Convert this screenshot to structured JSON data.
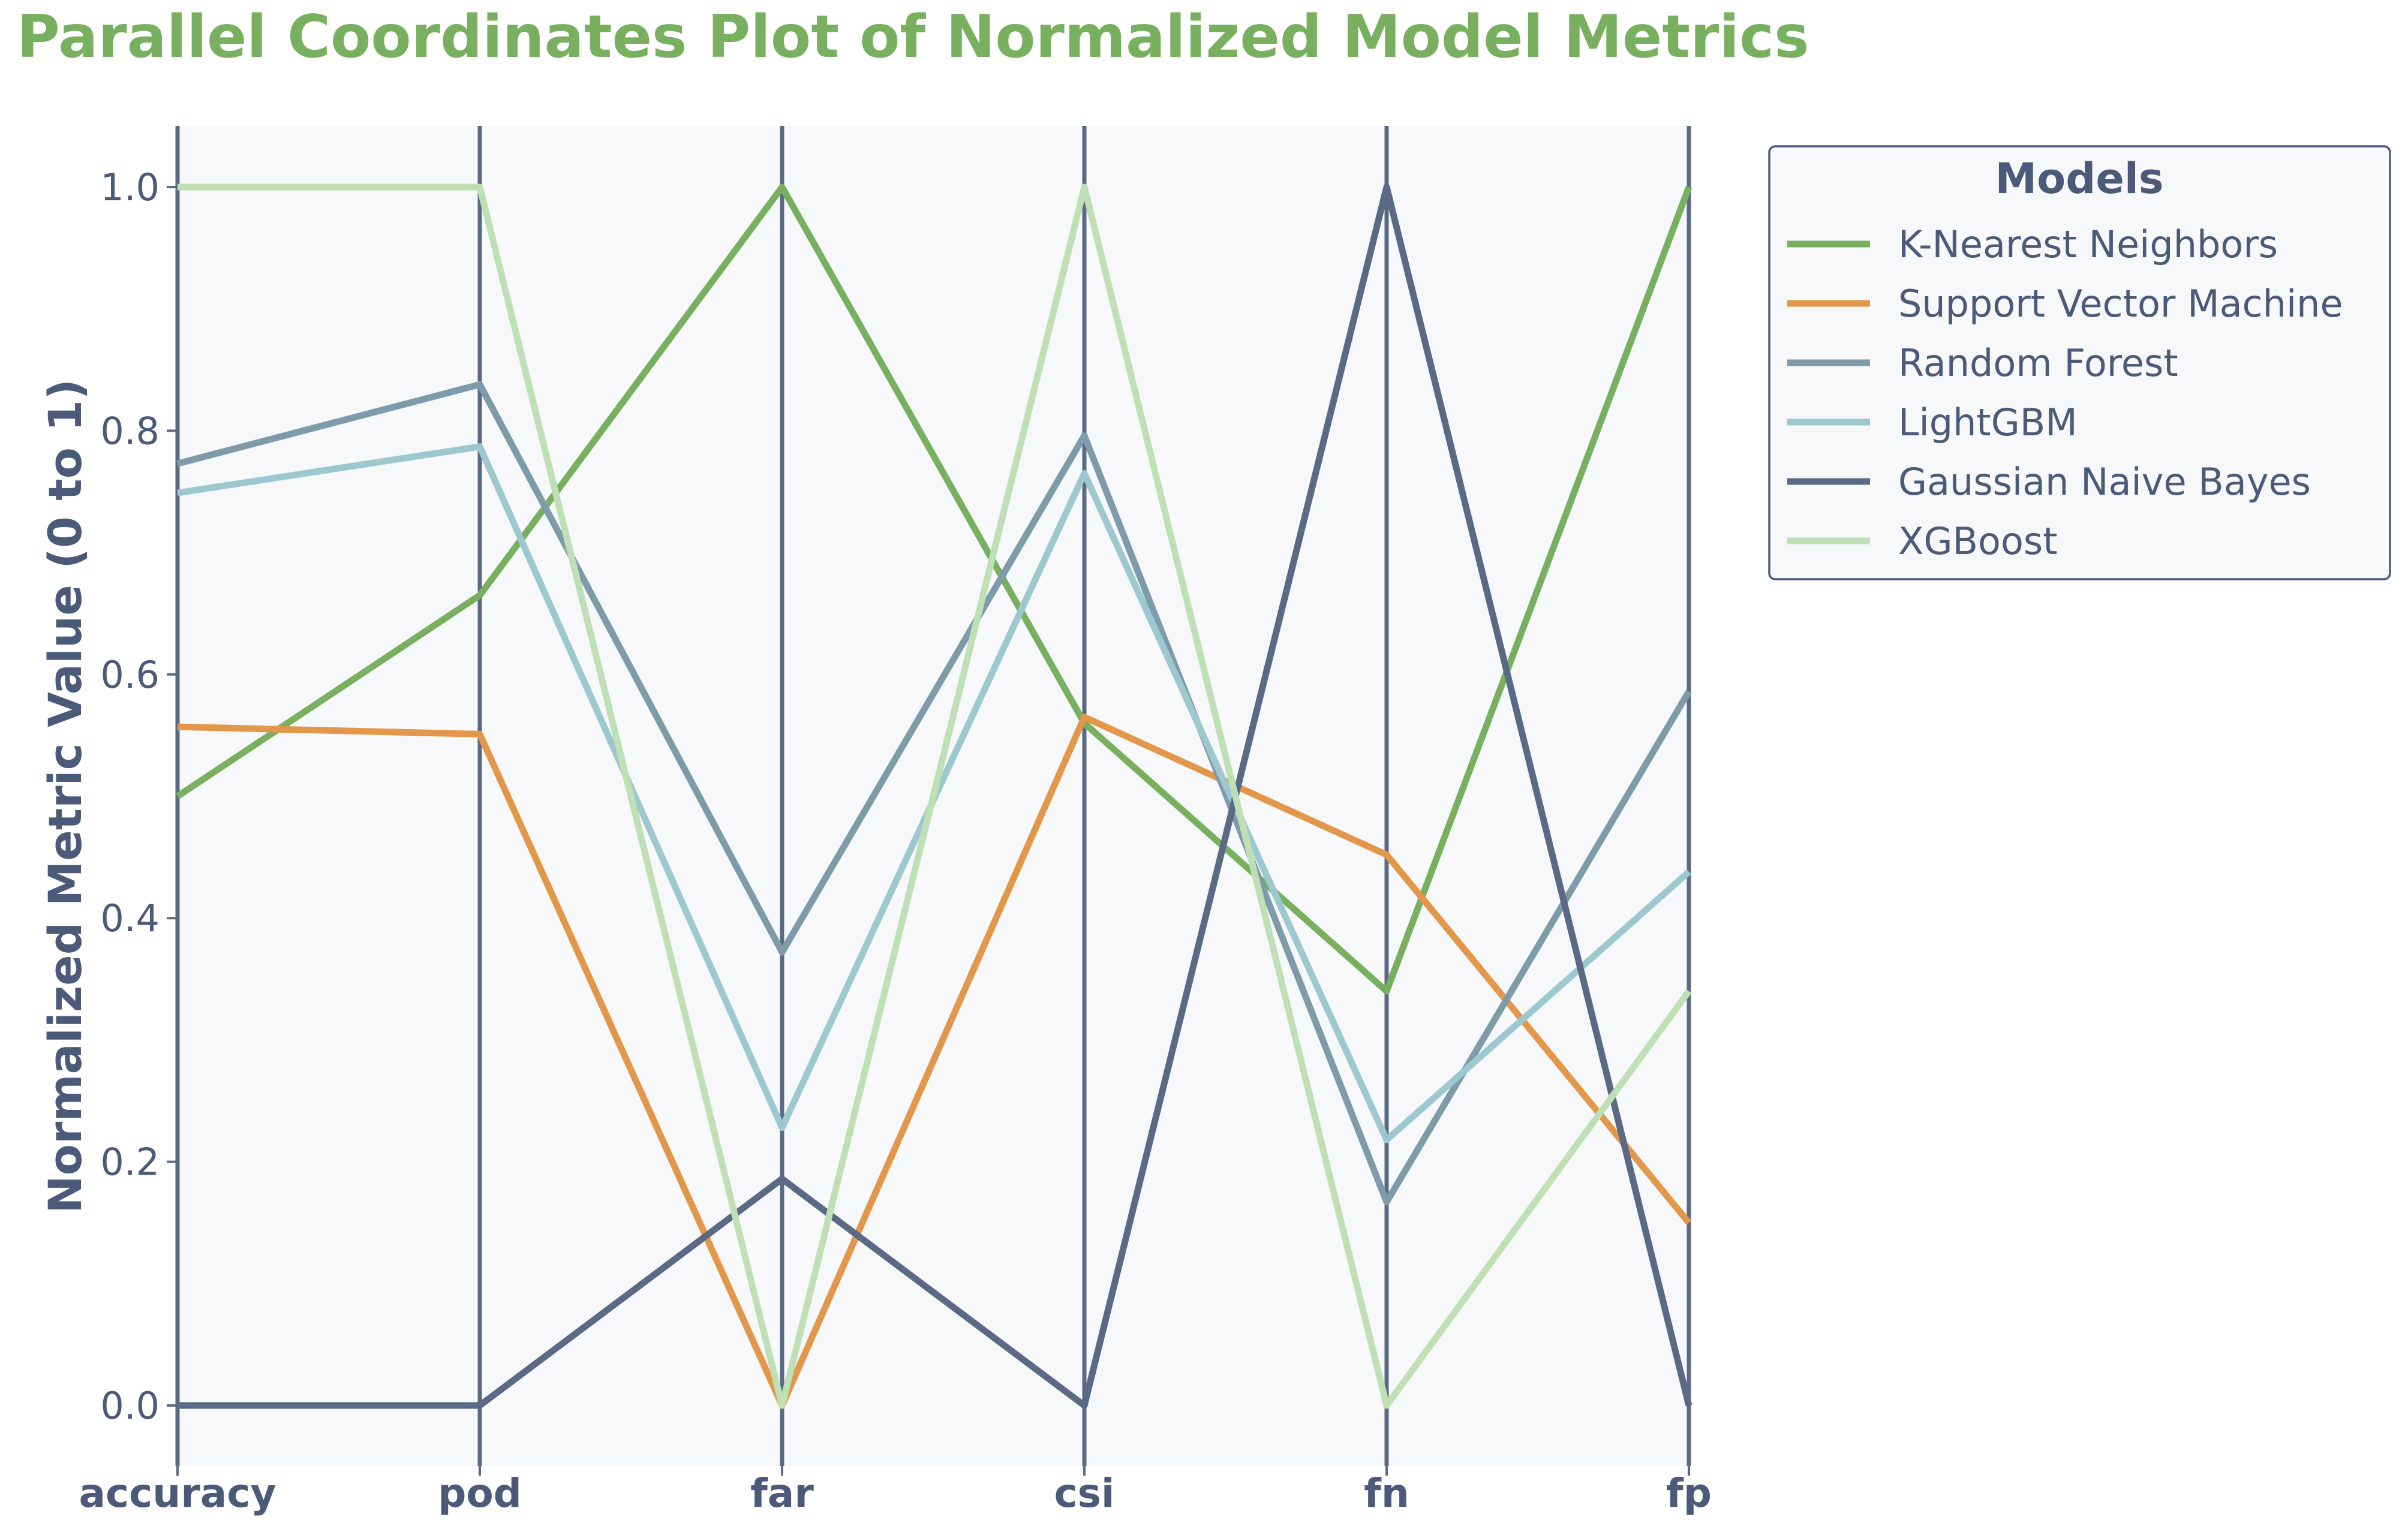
{
  "chart_data": {
    "type": "parallel-coordinates",
    "title": "Parallel Coordinates Plot of Normalized Model Metrics",
    "xlabel": "",
    "ylabel": "Normalized Metric Value (0 to 1)",
    "ylim": [
      -0.05,
      1.05
    ],
    "yticks": [
      "0.0",
      "0.2",
      "0.4",
      "0.6",
      "0.8",
      "1.0"
    ],
    "ytick_values": [
      0,
      0.2,
      0.4,
      0.6,
      0.8,
      1.0
    ],
    "axes": [
      "accuracy",
      "pod",
      "far",
      "csi",
      "fn",
      "fp"
    ],
    "grid": false,
    "legend_position": "outside-right-top",
    "legend_title": "Models",
    "series": [
      {
        "name": "K-Nearest Neighbors",
        "color": "#78b060",
        "values": [
          0.5,
          0.665,
          1.0,
          0.56,
          0.34,
          1.0
        ]
      },
      {
        "name": "Support Vector Machine",
        "color": "#e2974a",
        "values": [
          0.557,
          0.551,
          0.0,
          0.565,
          0.452,
          0.15
        ]
      },
      {
        "name": "Random Forest",
        "color": "#7d9ba8",
        "values": [
          0.773,
          0.838,
          0.372,
          0.796,
          0.167,
          0.586
        ]
      },
      {
        "name": "LightGBM",
        "color": "#9dc8d0",
        "values": [
          0.749,
          0.787,
          0.228,
          0.765,
          0.218,
          0.438
        ]
      },
      {
        "name": "Gaussian Naive Bayes",
        "color": "#5a6a85",
        "values": [
          0.0,
          0.0,
          0.186,
          0.0,
          1.0,
          0.0
        ]
      },
      {
        "name": "XGBoost",
        "color": "#bfdfb5",
        "values": [
          1.0,
          1.0,
          0.0,
          1.0,
          0.0,
          0.34
        ]
      }
    ],
    "colors": {
      "title": "#78b060",
      "text": "#4a5a78",
      "axis": "#5a6a85",
      "plot_bg": "#f7f8fa",
      "legend_border": "#4a5a78",
      "legend_bg": "#f7f8fa"
    }
  }
}
